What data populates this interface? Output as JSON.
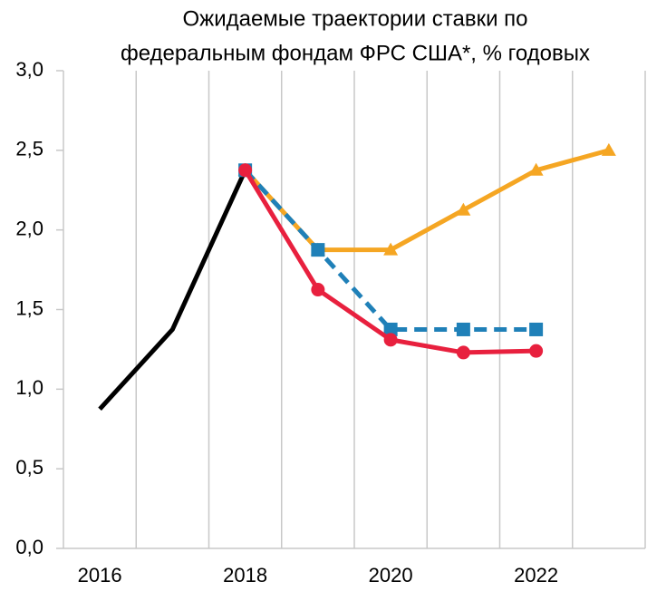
{
  "chart_data": {
    "type": "line",
    "title": [
      "Ожидаемые траектории ставки по",
      "федеральным фондам ФРС США*, % годовых"
    ],
    "categories": [
      "2016",
      null,
      "2018",
      null,
      "2020",
      null,
      "2022",
      null
    ],
    "series": [
      {
        "color": "#000000",
        "marker": "none",
        "dash": false,
        "values": [
          0.875,
          1.375,
          2.375,
          null,
          null,
          null,
          null,
          null
        ]
      },
      {
        "color": "#f5a623",
        "marker": "triangle",
        "dash": false,
        "values": [
          null,
          null,
          2.375,
          1.875,
          1.875,
          2.125,
          2.375,
          2.5
        ]
      },
      {
        "color": "#1f80b8",
        "marker": "square",
        "dash": true,
        "values": [
          null,
          null,
          2.375,
          1.875,
          1.375,
          1.375,
          1.375,
          null
        ]
      },
      {
        "color": "#e8203e",
        "marker": "circle",
        "dash": false,
        "values": [
          null,
          null,
          2.375,
          1.625,
          1.31,
          1.23,
          1.24,
          null
        ]
      }
    ],
    "ylim": [
      0,
      3
    ],
    "yticks": [
      {
        "value": 0,
        "label": "0,0"
      },
      {
        "value": 0.5,
        "label": "0,5"
      },
      {
        "value": 1,
        "label": "1,0"
      },
      {
        "value": 1.5,
        "label": "1,5"
      },
      {
        "value": 2,
        "label": "2,0"
      },
      {
        "value": 2.5,
        "label": "2,5"
      },
      {
        "value": 3,
        "label": "3,0"
      }
    ],
    "grid": "vertical"
  }
}
